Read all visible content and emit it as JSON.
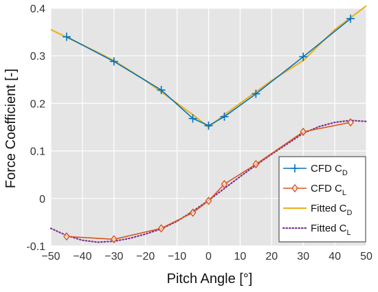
{
  "chart_data": {
    "type": "line",
    "title": "",
    "xlabel": "Pitch Angle [°]",
    "ylabel": "Force Coefficient [-]",
    "xlim": [
      -50,
      50
    ],
    "ylim": [
      -0.1,
      0.4
    ],
    "xticks": [
      -50,
      -40,
      -30,
      -20,
      -10,
      0,
      10,
      20,
      30,
      40,
      50
    ],
    "xtick_labels": [
      "−50",
      "−40",
      "−30",
      "−20",
      "−10",
      "0",
      "10",
      "20",
      "30",
      "40",
      "50"
    ],
    "yticks": [
      -0.1,
      0,
      0.1,
      0.2,
      0.3,
      0.4
    ],
    "ytick_labels": [
      "-0.1",
      "0",
      "0.1",
      "0.2",
      "0.3",
      "0.4"
    ],
    "grid": true,
    "legend_position": "bottom-right",
    "background": "#e5e5e5",
    "series": [
      {
        "name": "CFD C",
        "name_sub": "D",
        "style": "line-plus",
        "color": "#0072bd",
        "x": [
          -45,
          -30,
          -15,
          -5,
          0,
          5,
          15,
          30,
          45
        ],
        "y": [
          0.34,
          0.288,
          0.228,
          0.168,
          0.153,
          0.172,
          0.22,
          0.298,
          0.378
        ]
      },
      {
        "name": "CFD C",
        "name_sub": "L",
        "style": "line-diamond",
        "color": "#d95319",
        "x": [
          -45,
          -30,
          -15,
          -5,
          0,
          5,
          15,
          30,
          45
        ],
        "y": [
          -0.08,
          -0.086,
          -0.063,
          -0.03,
          -0.005,
          0.03,
          0.072,
          0.14,
          0.16
        ]
      },
      {
        "name": "Fitted C",
        "name_sub": "D",
        "style": "solid",
        "color": "#edb120",
        "x": [
          -50,
          -40,
          -30,
          -20,
          -10,
          -5,
          0,
          5,
          10,
          20,
          30,
          40,
          50
        ],
        "y": [
          0.355,
          0.323,
          0.29,
          0.248,
          0.2,
          0.176,
          0.15,
          0.176,
          0.2,
          0.248,
          0.29,
          0.355,
          0.405
        ]
      },
      {
        "name": "Fitted C",
        "name_sub": "L",
        "style": "dotted",
        "color": "#7e2f8e",
        "x": [
          -50,
          -45,
          -40,
          -35,
          -30,
          -25,
          -20,
          -15,
          -10,
          -5,
          0,
          5,
          10,
          15,
          20,
          25,
          30,
          35,
          40,
          45,
          50
        ],
        "y": [
          -0.063,
          -0.078,
          -0.088,
          -0.092,
          -0.09,
          -0.084,
          -0.075,
          -0.064,
          -0.048,
          -0.027,
          -0.004,
          0.021,
          0.046,
          0.07,
          0.093,
          0.115,
          0.137,
          0.151,
          0.16,
          0.164,
          0.162
        ]
      }
    ]
  }
}
